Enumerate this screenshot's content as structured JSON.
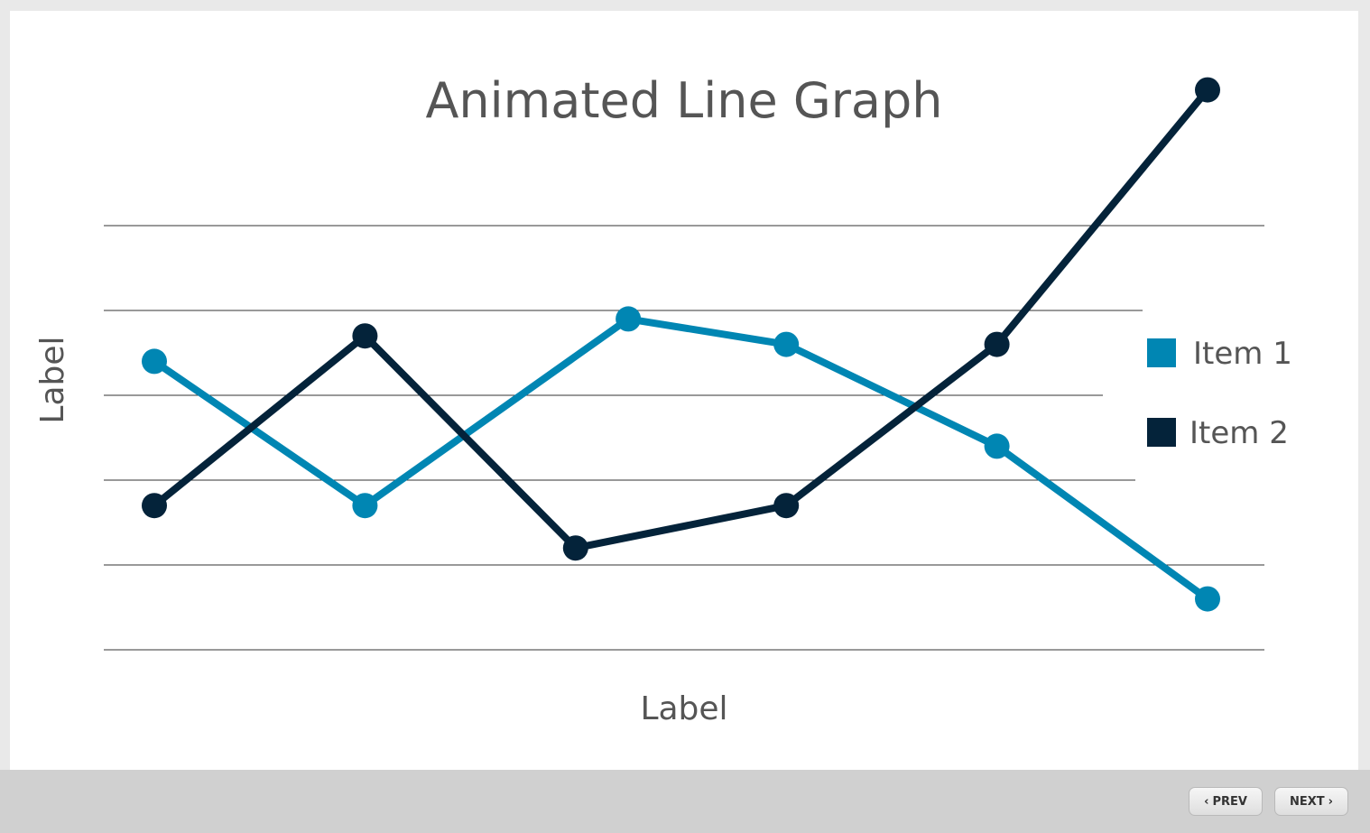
{
  "nav": {
    "prev_label": "PREV",
    "next_label": "NEXT"
  },
  "colors": {
    "series1": "#0086b3",
    "series2": "#04233a",
    "title": "#555555",
    "gridline": "#333333"
  },
  "chart_data": {
    "type": "line",
    "title": "Animated Line Graph",
    "xlabel": "Label",
    "ylabel": "Label",
    "ylim": [
      0,
      5
    ],
    "grid": true,
    "legend_position": "right",
    "series": [
      {
        "name": "Item 1",
        "x": [
          1,
          3,
          5.5,
          7,
          9,
          11
        ],
        "values": [
          3.4,
          1.7,
          3.9,
          3.6,
          2.4,
          0.6
        ]
      },
      {
        "name": "Item 2",
        "x": [
          1,
          3,
          5,
          7,
          9,
          11
        ],
        "values": [
          1.7,
          3.7,
          1.2,
          1.7,
          3.6,
          6.6
        ]
      }
    ],
    "xlim": [
      0.5,
      11.5
    ]
  }
}
